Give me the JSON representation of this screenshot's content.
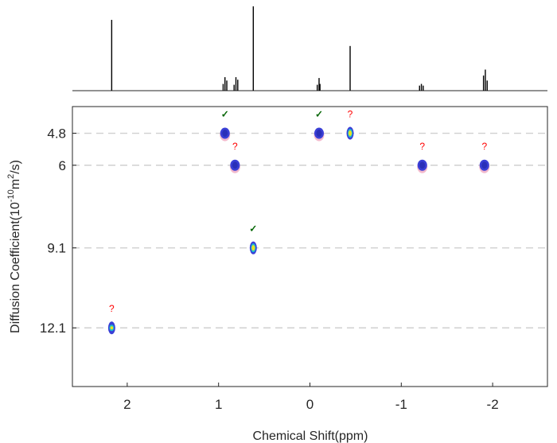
{
  "chart_data": {
    "type": "scatter",
    "title": "",
    "xlabel": "Chemical Shift(ppm)",
    "ylabel": {
      "base": "Diffusion Coefficient(10",
      "exp1": "-10",
      "mid": "m",
      "exp2": "2",
      "end": "/s)"
    },
    "x_reversed": true,
    "xlim": [
      2.6,
      -2.6
    ],
    "ylim": [
      3.8,
      14.3
    ],
    "x_ticks": [
      2,
      1,
      0,
      -1,
      -2
    ],
    "x_tick_labels": [
      "2",
      "1",
      "0",
      "-1",
      "-2"
    ],
    "y_ticks": [
      4.8,
      6,
      9.1,
      12.1
    ],
    "y_tick_labels": [
      "4.8",
      "6",
      "9.1",
      "12.1"
    ],
    "grid": "horizontal dashed lines at y ticks",
    "points": [
      {
        "x": 2.17,
        "y": 12.1,
        "mark": "?",
        "style": "blue-yellow"
      },
      {
        "x": 0.93,
        "y": 4.8,
        "mark": "✓",
        "style": "blue"
      },
      {
        "x": 0.82,
        "y": 6.0,
        "mark": "?",
        "style": "blue"
      },
      {
        "x": 0.62,
        "y": 9.1,
        "mark": "✓",
        "style": "yellow"
      },
      {
        "x": -0.1,
        "y": 4.8,
        "mark": "✓",
        "style": "blue"
      },
      {
        "x": -0.44,
        "y": 4.8,
        "mark": "?",
        "style": "yellow"
      },
      {
        "x": -1.23,
        "y": 6.0,
        "mark": "?",
        "style": "blue"
      },
      {
        "x": -1.91,
        "y": 6.0,
        "mark": "?",
        "style": "blue"
      }
    ],
    "spectrum_peaks": [
      {
        "x": 2.17,
        "h": 0.84
      },
      {
        "x": 0.93,
        "h": 0.16
      },
      {
        "x": 0.91,
        "h": 0.12
      },
      {
        "x": 0.95,
        "h": 0.08
      },
      {
        "x": 0.81,
        "h": 0.16
      },
      {
        "x": 0.79,
        "h": 0.13
      },
      {
        "x": 0.83,
        "h": 0.07
      },
      {
        "x": 0.62,
        "h": 1.0
      },
      {
        "x": -0.1,
        "h": 0.15
      },
      {
        "x": -0.11,
        "h": 0.08
      },
      {
        "x": -0.08,
        "h": 0.07
      },
      {
        "x": -0.44,
        "h": 0.53
      },
      {
        "x": -1.22,
        "h": 0.08
      },
      {
        "x": -1.2,
        "h": 0.06
      },
      {
        "x": -1.24,
        "h": 0.06
      },
      {
        "x": -1.92,
        "h": 0.25
      },
      {
        "x": -1.9,
        "h": 0.18
      },
      {
        "x": -1.94,
        "h": 0.12
      }
    ],
    "colors": {
      "check": "#006400",
      "question": "#ff0000",
      "blue": "#3a3fd6",
      "blue_dark": "#2a2fb8",
      "yellow": "#f0e020",
      "cyan": "#19c0d0",
      "halo": "#f2b3c8",
      "grid": "#d0d0d0",
      "axis": "#262626"
    }
  }
}
